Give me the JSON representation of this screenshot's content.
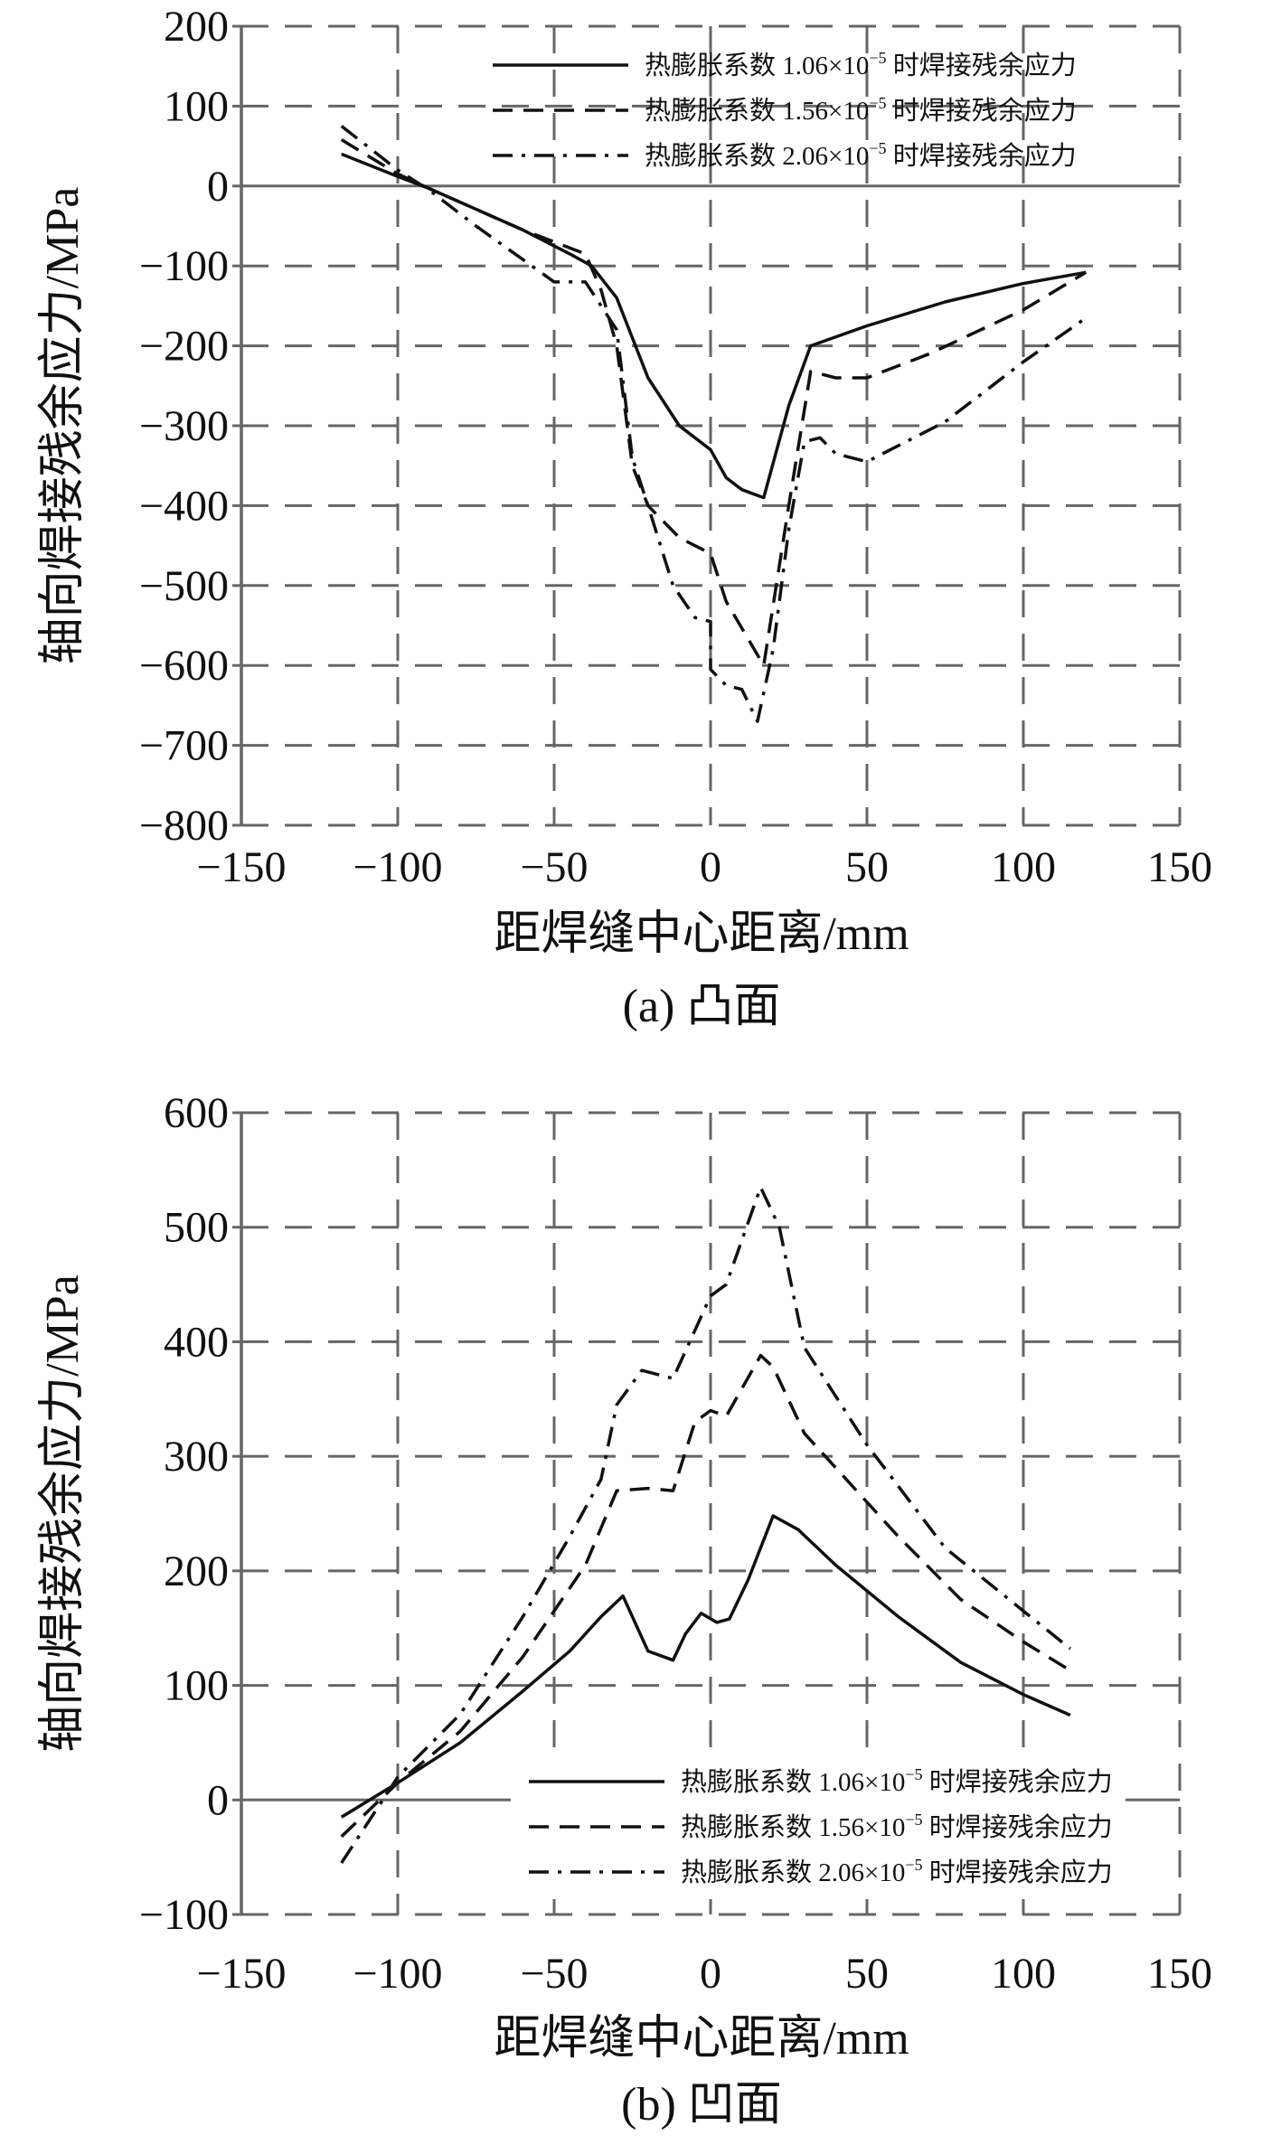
{
  "colors": {
    "line": "#111111",
    "grid": "#666666",
    "axis": "#666666"
  },
  "chart_data": [
    {
      "type": "line",
      "caption": "(a) 凸面",
      "xlabel": "距焊缝中心距离/mm",
      "ylabel": "轴向焊接残余应力/MPa",
      "xlim": [
        -150,
        150
      ],
      "ylim": [
        -800,
        200
      ],
      "xticks": [
        -150,
        -100,
        -50,
        0,
        50,
        100,
        150
      ],
      "yticks": [
        200,
        100,
        0,
        -100,
        -200,
        -300,
        -400,
        -500,
        -600,
        -700,
        -800
      ],
      "xtick_labels": [
        "−150",
        "−100",
        "−50",
        "0",
        "50",
        "100",
        "150"
      ],
      "ytick_labels": [
        "200",
        "100",
        "0",
        "−100",
        "−200",
        "−300",
        "−400",
        "−500",
        "−600",
        "−700",
        "−800"
      ],
      "grid": true,
      "legend_position": "top-right",
      "series": [
        {
          "name": "热膨胀系数 1.06×10⁻⁵ 时焊接残余应力",
          "coef": "1.06",
          "style": "solid",
          "x": [
            -118,
            -100,
            -90,
            -60,
            -45,
            -38,
            -30,
            -20,
            -10,
            0,
            5,
            10,
            17,
            25,
            32,
            50,
            75,
            100,
            120
          ],
          "y": [
            40,
            12,
            -3,
            -55,
            -85,
            -100,
            -140,
            -240,
            -300,
            -330,
            -365,
            -380,
            -390,
            -275,
            -200,
            -175,
            -145,
            -122,
            -108
          ]
        },
        {
          "name": "热膨胀系数 1.56×10⁻⁵ 时焊接残余应力",
          "coef": "1.56",
          "style": "dashed",
          "x": [
            -118,
            -100,
            -90,
            -60,
            -40,
            -35,
            -30,
            -25,
            -20,
            -10,
            0,
            5,
            17,
            25,
            32,
            40,
            50,
            70,
            100,
            120
          ],
          "y": [
            58,
            15,
            -3,
            -55,
            -85,
            -130,
            -200,
            -350,
            -400,
            -440,
            -460,
            -520,
            -600,
            -400,
            -232,
            -240,
            -240,
            -210,
            -155,
            -108
          ]
        },
        {
          "name": "热膨胀系数 2.06×10⁻⁵ 时焊接残余应力",
          "coef": "2.06",
          "style": "dashdot",
          "x": [
            -118,
            -100,
            -90,
            -75,
            -50,
            -40,
            -30,
            -25,
            -20,
            -12,
            -5,
            0,
            0,
            5,
            10,
            15,
            20,
            25,
            30,
            35,
            40,
            50,
            75,
            100,
            120
          ],
          "y": [
            75,
            20,
            -5,
            -50,
            -120,
            -120,
            -180,
            -340,
            -400,
            -500,
            -540,
            -545,
            -605,
            -625,
            -630,
            -670,
            -580,
            -430,
            -320,
            -315,
            -335,
            -345,
            -295,
            -220,
            -165
          ]
        }
      ]
    },
    {
      "type": "line",
      "caption": "(b) 凹面",
      "xlabel": "距焊缝中心距离/mm",
      "ylabel": "轴向焊接残余应力/MPa",
      "xlim": [
        -150,
        150
      ],
      "ylim": [
        -100,
        600
      ],
      "xticks": [
        -150,
        -100,
        -50,
        0,
        50,
        100,
        150
      ],
      "yticks": [
        600,
        500,
        400,
        300,
        200,
        100,
        0,
        -100
      ],
      "xtick_labels": [
        "−150",
        "−100",
        "−50",
        "0",
        "50",
        "100",
        "150"
      ],
      "ytick_labels": [
        "600",
        "500",
        "400",
        "300",
        "200",
        "100",
        "0",
        "−100"
      ],
      "grid": true,
      "legend_position": "bottom-right",
      "series": [
        {
          "name": "热膨胀系数 1.06×10⁻⁵ 时焊接残余应力",
          "coef": "1.06",
          "style": "solid",
          "x": [
            -118,
            -100,
            -80,
            -60,
            -45,
            -35,
            -28,
            -20,
            -12,
            -8,
            -3,
            2,
            6,
            12,
            20,
            28,
            40,
            60,
            80,
            100,
            115
          ],
          "y": [
            -15,
            15,
            50,
            95,
            130,
            160,
            178,
            130,
            122,
            145,
            163,
            155,
            158,
            192,
            248,
            236,
            205,
            160,
            120,
            92,
            74
          ]
        },
        {
          "name": "热膨胀系数 1.56×10⁻⁵ 时焊接残余应力",
          "coef": "1.56",
          "style": "dashed",
          "x": [
            -118,
            -100,
            -80,
            -60,
            -40,
            -30,
            -20,
            -12,
            -5,
            0,
            5,
            16,
            20,
            30,
            40,
            60,
            80,
            100,
            115
          ],
          "y": [
            -32,
            15,
            60,
            125,
            205,
            270,
            272,
            270,
            330,
            340,
            335,
            388,
            378,
            320,
            290,
            230,
            175,
            138,
            113
          ]
        },
        {
          "name": "热膨胀系数 2.06×10⁻⁵ 时焊接残余应力",
          "coef": "2.06",
          "style": "dashdot",
          "x": [
            -118,
            -100,
            -80,
            -60,
            -45,
            -35,
            -30,
            -22,
            -12,
            -5,
            0,
            5,
            16,
            22,
            30,
            50,
            75,
            100,
            115
          ],
          "y": [
            -55,
            20,
            75,
            160,
            230,
            280,
            345,
            375,
            368,
            410,
            440,
            450,
            535,
            500,
            395,
            310,
            220,
            165,
            132
          ]
        }
      ]
    }
  ],
  "legend_parts": {
    "prefix": "热膨胀系数 ",
    "times": "×10",
    "exp": "−5",
    "suffix": " 时焊接残余应力"
  }
}
